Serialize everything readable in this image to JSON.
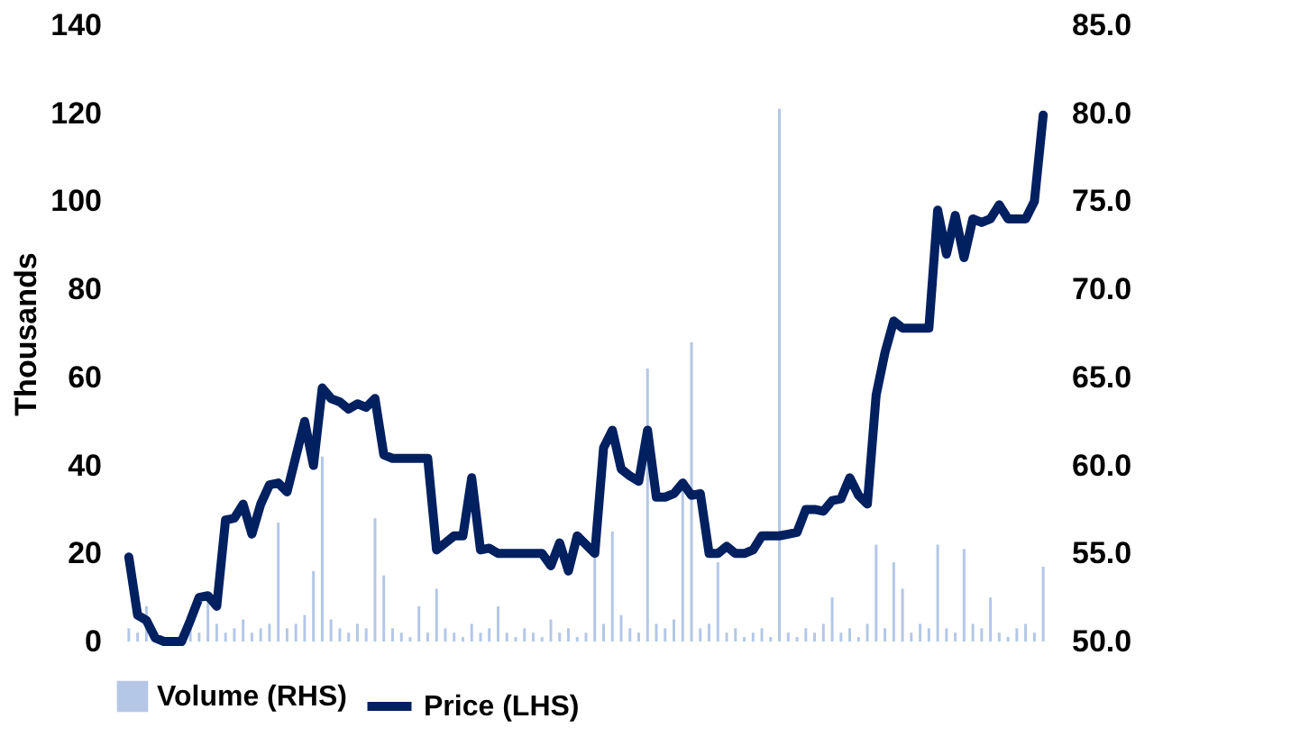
{
  "chart_data": {
    "type": "line",
    "categories": [
      null,
      null,
      null,
      null,
      null,
      null,
      null,
      null,
      null,
      null,
      null,
      null,
      null,
      null,
      null,
      null,
      null,
      null,
      null,
      null,
      null,
      null,
      null,
      null,
      null,
      null,
      null,
      null,
      null,
      null,
      null,
      null,
      null,
      null,
      null,
      null,
      null,
      null,
      null,
      null,
      null,
      null,
      null,
      null,
      null,
      null,
      null,
      null,
      null,
      null,
      null,
      null,
      null,
      null,
      null,
      null,
      null,
      null,
      null,
      null,
      null,
      null,
      null,
      null,
      null,
      null,
      null,
      null,
      null,
      null,
      null,
      null,
      null,
      null,
      null,
      null,
      null,
      null,
      null,
      null,
      null,
      null,
      null,
      null,
      null,
      null,
      null,
      null,
      null,
      null,
      null,
      null,
      null,
      null,
      null,
      null,
      null,
      null,
      null,
      null,
      null,
      null,
      null,
      null,
      null
    ],
    "series": [
      {
        "name": "Volume (RHS)",
        "type": "bar",
        "axis": "y",
        "color": "#b4c7e7",
        "values": [
          3,
          2,
          8,
          null,
          null,
          null,
          null,
          3,
          2,
          10,
          4,
          2,
          3,
          5,
          2,
          3,
          4,
          27,
          3,
          4,
          6,
          16,
          42,
          5,
          3,
          2,
          4,
          3,
          28,
          15,
          3,
          2,
          1,
          8,
          2,
          12,
          3,
          2,
          1,
          4,
          2,
          3,
          8,
          2,
          1,
          3,
          2,
          1,
          5,
          2,
          3,
          1,
          2,
          20,
          4,
          25,
          6,
          3,
          2,
          62,
          4,
          3,
          5,
          35,
          68,
          3,
          4,
          18,
          2,
          3,
          1,
          2,
          3,
          1,
          121,
          2,
          1,
          3,
          2,
          4,
          10,
          2,
          3,
          1,
          4,
          22,
          3,
          18,
          12,
          2,
          4,
          3,
          22,
          3,
          2,
          21,
          4,
          3,
          10,
          2,
          1,
          3,
          4,
          2,
          17
        ]
      },
      {
        "name": "Price (LHS)",
        "axis": "y2",
        "color": "#002060",
        "values": [
          54.8,
          51.5,
          51.2,
          50.2,
          50.0,
          50.0,
          50.0,
          51.2,
          52.5,
          52.6,
          52.0,
          56.9,
          57.0,
          57.8,
          56.1,
          57.8,
          58.9,
          59.0,
          58.5,
          60.5,
          62.5,
          60.0,
          64.4,
          63.8,
          63.6,
          63.2,
          63.5,
          63.3,
          63.8,
          60.6,
          60.4,
          60.4,
          60.4,
          60.4,
          60.4,
          55.2,
          55.6,
          56.0,
          56.0,
          59.3,
          55.2,
          55.3,
          55.0,
          55.0,
          55.0,
          55.0,
          55.0,
          55.0,
          54.3,
          55.6,
          54.0,
          56.0,
          55.5,
          55.0,
          61.0,
          62.0,
          59.8,
          59.4,
          59.1,
          62.0,
          58.2,
          58.2,
          58.4,
          59.0,
          58.3,
          58.4,
          55.0,
          55.0,
          55.4,
          55.0,
          55.0,
          55.2,
          56.0,
          56.0,
          56.0,
          56.1,
          56.2,
          57.5,
          57.5,
          57.4,
          58.0,
          58.1,
          59.3,
          58.3,
          57.8,
          64.0,
          66.4,
          68.2,
          67.8,
          67.8,
          67.8,
          67.8,
          74.5,
          72.0,
          74.2,
          71.8,
          74.0,
          73.8,
          74.0,
          74.8,
          74.0,
          74.0,
          74.0,
          75.0,
          79.9
        ]
      }
    ],
    "ylabel": "Thousands",
    "ylim": [
      0,
      140
    ],
    "yticks": [
      0,
      20,
      40,
      60,
      80,
      100,
      120,
      140
    ],
    "y2lim": [
      50,
      85
    ],
    "y2ticks": [
      {
        "value": 50,
        "label": "50.0"
      },
      {
        "value": 55,
        "label": "55.0"
      },
      {
        "value": 60,
        "label": "60.0"
      },
      {
        "value": 65,
        "label": "65.0"
      },
      {
        "value": 70,
        "label": "70.0"
      },
      {
        "value": 75,
        "label": "75.0"
      },
      {
        "value": 80,
        "label": "80.0"
      },
      {
        "value": 85,
        "label": "85.0"
      }
    ],
    "legend": "bottom",
    "line_style": "solid"
  }
}
